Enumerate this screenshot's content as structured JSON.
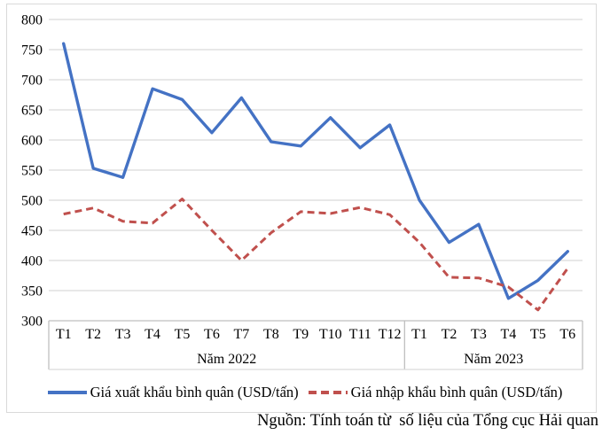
{
  "chart_data": {
    "type": "line",
    "title": "",
    "categories": [
      "T1",
      "T2",
      "T3",
      "T4",
      "T5",
      "T6",
      "T7",
      "T8",
      "T9",
      "T10",
      "T11",
      "T12",
      "T1",
      "T2",
      "T3",
      "T4",
      "T5",
      "T6"
    ],
    "category_groups": [
      {
        "label": "Năm 2022",
        "span": 12
      },
      {
        "label": "Năm 2023",
        "span": 6
      }
    ],
    "series": [
      {
        "name": "Giá xuất khẩu bình quân (USD/tấn)",
        "color": "#4472c4",
        "style": "solid",
        "values": [
          760,
          553,
          538,
          685,
          667,
          612,
          670,
          597,
          590,
          637,
          587,
          625,
          500,
          430,
          460,
          337,
          367,
          415
        ]
      },
      {
        "name": "Giá nhập khẩu bình quân (USD/tấn)",
        "color": "#c0504d",
        "style": "dashed",
        "values": [
          477,
          487,
          465,
          462,
          502,
          450,
          400,
          446,
          481,
          478,
          488,
          476,
          430,
          372,
          371,
          356,
          318,
          387
        ]
      }
    ],
    "ylim": [
      300,
      800
    ],
    "ytick_step": 50,
    "yticks": [
      300,
      350,
      400,
      450,
      500,
      550,
      600,
      650,
      700,
      750,
      800
    ],
    "grid": true,
    "legend_position": "bottom"
  },
  "source_note": "Nguồn: Tính toán từ  số liệu của Tổng cục Hải quan",
  "colors": {
    "gridline": "#d9d9d9",
    "axis_line": "#bfbfbf",
    "frame": "#d9d9d9",
    "text": "#000000",
    "background": "#ffffff"
  }
}
